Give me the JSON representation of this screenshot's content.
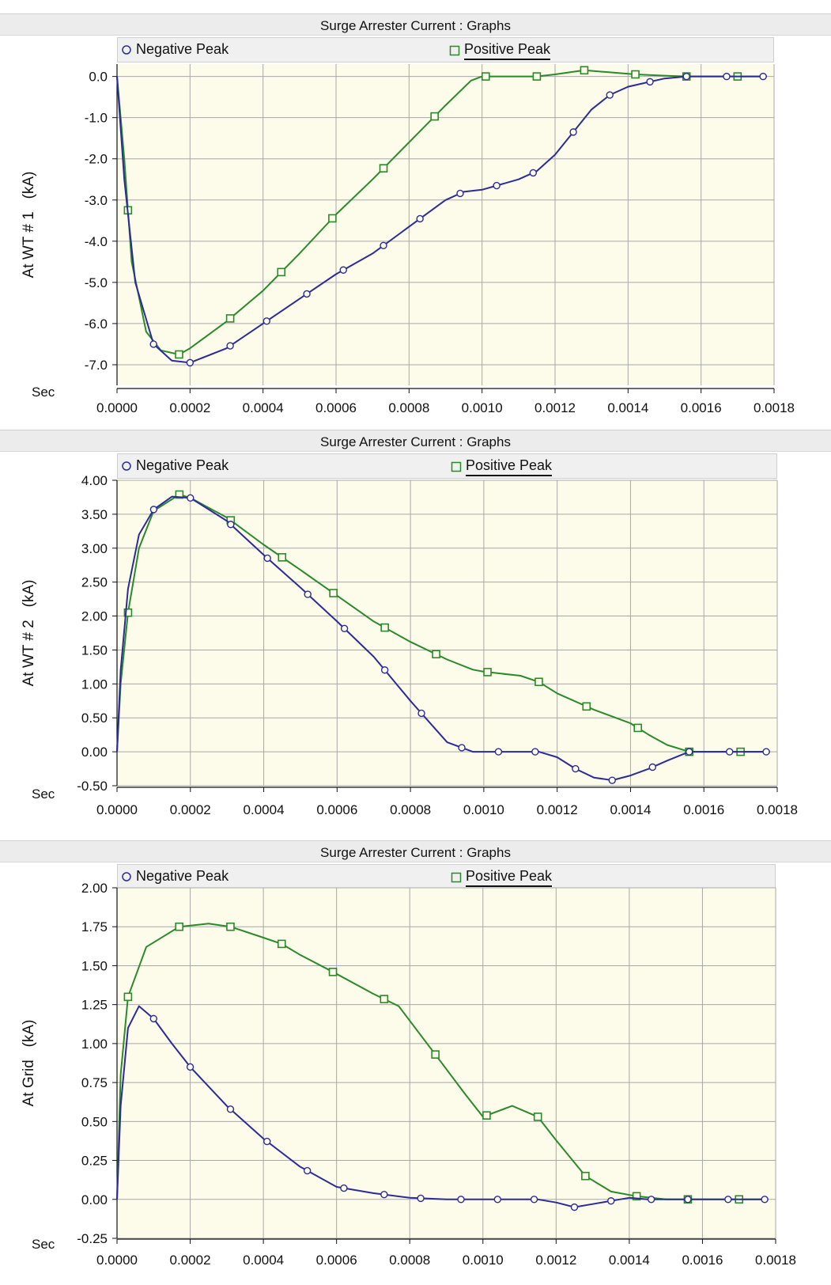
{
  "colors": {
    "negative": "#2b2b99",
    "positive": "#2a8a2a",
    "plot_bg": "#fdfbea",
    "grid": "#a8a8a8",
    "axis": "#111111"
  },
  "icons": {
    "negative_marker": "circle-marker-icon",
    "positive_marker": "square-marker-icon"
  },
  "chart_data": [
    {
      "type": "line",
      "title": "Surge Arrester Current : Graphs",
      "xlabel": "Sec",
      "ylabel": "At WT # 1   (kA)",
      "ylim": [
        -7.5,
        0.3
      ],
      "xlim": [
        0,
        0.0018
      ],
      "grid": true,
      "legend_placement": "top",
      "x_ticks": [
        "0.0000",
        "0.0002",
        "0.0004",
        "0.0006",
        "0.0008",
        "0.0010",
        "0.0012",
        "0.0014",
        "0.0016",
        "0.0018"
      ],
      "y_ticks": [
        "0.0",
        "-1.0",
        "-2.0",
        "-3.0",
        "-4.0",
        "-5.0",
        "-6.0",
        "-7.0"
      ],
      "series": [
        {
          "name": "Negative Peak",
          "marker": "circle",
          "points": [
            [
              0,
              0
            ],
            [
              2e-05,
              -2.5
            ],
            [
              5e-05,
              -5.0
            ],
            [
              0.0001,
              -6.5
            ],
            [
              0.00015,
              -6.9
            ],
            [
              0.0002,
              -6.95
            ],
            [
              0.0003,
              -6.6
            ],
            [
              0.0004,
              -6.0
            ],
            [
              0.0005,
              -5.4
            ],
            [
              0.0006,
              -4.8
            ],
            [
              0.0007,
              -4.3
            ],
            [
              0.0008,
              -3.65
            ],
            [
              0.0009,
              -3.0
            ],
            [
              0.00095,
              -2.8
            ],
            [
              0.001,
              -2.75
            ],
            [
              0.0011,
              -2.5
            ],
            [
              0.00115,
              -2.3
            ],
            [
              0.0012,
              -1.9
            ],
            [
              0.00125,
              -1.35
            ],
            [
              0.0013,
              -0.8
            ],
            [
              0.00135,
              -0.45
            ],
            [
              0.0014,
              -0.25
            ],
            [
              0.00145,
              -0.15
            ],
            [
              0.0015,
              -0.05
            ],
            [
              0.00156,
              0
            ],
            [
              0.0017,
              0
            ],
            [
              0.00178,
              0
            ]
          ],
          "markers_x": [
            0.0001,
            0.0002,
            0.00031,
            0.00041,
            0.00052,
            0.00062,
            0.00073,
            0.00083,
            0.00094,
            0.00104,
            0.00114,
            0.00125,
            0.00135,
            0.00146,
            0.00156,
            0.00167,
            0.00177
          ]
        },
        {
          "name": "Positive Peak",
          "marker": "square",
          "points": [
            [
              0,
              0
            ],
            [
              2e-05,
              -2.0
            ],
            [
              4e-05,
              -4.5
            ],
            [
              8e-05,
              -6.2
            ],
            [
              0.00012,
              -6.65
            ],
            [
              0.00017,
              -6.75
            ],
            [
              0.0002,
              -6.6
            ],
            [
              0.0003,
              -5.95
            ],
            [
              0.0004,
              -5.2
            ],
            [
              0.0005,
              -4.3
            ],
            [
              0.0006,
              -3.35
            ],
            [
              0.0007,
              -2.5
            ],
            [
              0.0008,
              -1.6
            ],
            [
              0.0009,
              -0.7
            ],
            [
              0.00097,
              -0.1
            ],
            [
              0.001,
              0
            ],
            [
              0.00115,
              0
            ],
            [
              0.0012,
              0.05
            ],
            [
              0.00128,
              0.15
            ],
            [
              0.00135,
              0.1
            ],
            [
              0.00142,
              0.05
            ],
            [
              0.0015,
              0.02
            ],
            [
              0.00156,
              0
            ],
            [
              0.0017,
              0
            ],
            [
              0.00178,
              0
            ]
          ],
          "markers_x": [
            3e-05,
            0.00017,
            0.00031,
            0.00045,
            0.00059,
            0.00073,
            0.00087,
            0.00101,
            0.00115,
            0.00128,
            0.00142,
            0.00156,
            0.0017
          ]
        }
      ]
    },
    {
      "type": "line",
      "title": "Surge Arrester Current : Graphs",
      "xlabel": "Sec",
      "ylabel": "At WT # 2   (kA)",
      "ylim": [
        -0.5,
        4.0
      ],
      "xlim": [
        0,
        0.0018
      ],
      "grid": true,
      "legend_placement": "top",
      "x_ticks": [
        "0.0000",
        "0.0002",
        "0.0004",
        "0.0006",
        "0.0008",
        "0.0010",
        "0.0012",
        "0.0014",
        "0.0016",
        "0.0018"
      ],
      "y_ticks": [
        "4.00",
        "3.50",
        "3.00",
        "2.50",
        "2.00",
        "1.50",
        "1.00",
        "0.50",
        "0.00",
        "-0.50"
      ],
      "series": [
        {
          "name": "Negative Peak",
          "marker": "circle",
          "points": [
            [
              0,
              0
            ],
            [
              1e-05,
              1.2
            ],
            [
              3e-05,
              2.4
            ],
            [
              6e-05,
              3.2
            ],
            [
              0.0001,
              3.57
            ],
            [
              0.00015,
              3.76
            ],
            [
              0.0002,
              3.74
            ],
            [
              0.0003,
              3.4
            ],
            [
              0.0004,
              2.9
            ],
            [
              0.0005,
              2.42
            ],
            [
              0.0006,
              1.92
            ],
            [
              0.0007,
              1.4
            ],
            [
              0.0008,
              0.75
            ],
            [
              0.0009,
              0.14
            ],
            [
              0.00097,
              0
            ],
            [
              0.001,
              0
            ],
            [
              0.00115,
              0
            ],
            [
              0.0012,
              -0.08
            ],
            [
              0.00125,
              -0.25
            ],
            [
              0.0013,
              -0.38
            ],
            [
              0.00135,
              -0.42
            ],
            [
              0.0014,
              -0.35
            ],
            [
              0.00145,
              -0.25
            ],
            [
              0.0015,
              -0.13
            ],
            [
              0.00156,
              0
            ],
            [
              0.0017,
              0
            ],
            [
              0.00178,
              0
            ]
          ],
          "markers_x": [
            0.0001,
            0.0002,
            0.00031,
            0.00041,
            0.00052,
            0.00062,
            0.00073,
            0.00083,
            0.00094,
            0.00104,
            0.00114,
            0.00125,
            0.00135,
            0.00146,
            0.00156,
            0.00167,
            0.00177
          ]
        },
        {
          "name": "Positive Peak",
          "marker": "square",
          "points": [
            [
              0,
              0
            ],
            [
              1e-05,
              1.0
            ],
            [
              3e-05,
              2.05
            ],
            [
              6e-05,
              3.0
            ],
            [
              0.0001,
              3.55
            ],
            [
              0.00017,
              3.79
            ],
            [
              0.0002,
              3.74
            ],
            [
              0.0003,
              3.45
            ],
            [
              0.0004,
              3.05
            ],
            [
              0.0005,
              2.68
            ],
            [
              0.0006,
              2.3
            ],
            [
              0.0007,
              1.92
            ],
            [
              0.0008,
              1.62
            ],
            [
              0.0009,
              1.36
            ],
            [
              0.00097,
              1.21
            ],
            [
              0.001,
              1.18
            ],
            [
              0.0011,
              1.12
            ],
            [
              0.00115,
              1.03
            ],
            [
              0.0012,
              0.86
            ],
            [
              0.0013,
              0.62
            ],
            [
              0.0014,
              0.42
            ],
            [
              0.00145,
              0.25
            ],
            [
              0.0015,
              0.1
            ],
            [
              0.00156,
              0
            ],
            [
              0.0017,
              0
            ],
            [
              0.00178,
              0
            ]
          ],
          "markers_x": [
            3e-05,
            0.00017,
            0.00031,
            0.00045,
            0.00059,
            0.00073,
            0.00087,
            0.00101,
            0.00115,
            0.00128,
            0.00142,
            0.00156,
            0.0017
          ]
        }
      ]
    },
    {
      "type": "line",
      "title": "Surge Arrester Current : Graphs",
      "xlabel": "Sec",
      "ylabel": "At Grid   (kA)",
      "ylim": [
        -0.25,
        2.0
      ],
      "xlim": [
        0,
        0.0018
      ],
      "grid": true,
      "legend_placement": "top",
      "x_ticks": [
        "0.0000",
        "0.0002",
        "0.0004",
        "0.0006",
        "0.0008",
        "0.0010",
        "0.0012",
        "0.0014",
        "0.0016",
        "0.0018"
      ],
      "y_ticks": [
        "2.00",
        "1.75",
        "1.50",
        "1.25",
        "1.00",
        "0.75",
        "0.50",
        "0.25",
        "0.00",
        "-0.25"
      ],
      "series": [
        {
          "name": "Negative Peak",
          "marker": "circle",
          "points": [
            [
              0,
              0
            ],
            [
              1e-05,
              0.6
            ],
            [
              3e-05,
              1.1
            ],
            [
              6e-05,
              1.24
            ],
            [
              0.0001,
              1.16
            ],
            [
              0.00015,
              1.0
            ],
            [
              0.0002,
              0.85
            ],
            [
              0.0003,
              0.6
            ],
            [
              0.0004,
              0.39
            ],
            [
              0.0005,
              0.21
            ],
            [
              0.0006,
              0.08
            ],
            [
              0.0007,
              0.04
            ],
            [
              0.0008,
              0.01
            ],
            [
              0.0009,
              0
            ],
            [
              0.00115,
              0
            ],
            [
              0.0012,
              -0.02
            ],
            [
              0.00125,
              -0.05
            ],
            [
              0.0013,
              -0.03
            ],
            [
              0.00135,
              -0.01
            ],
            [
              0.0014,
              0.01
            ],
            [
              0.00145,
              0
            ],
            [
              0.00156,
              0
            ],
            [
              0.0017,
              0
            ],
            [
              0.00178,
              0
            ]
          ],
          "markers_x": [
            0.0001,
            0.0002,
            0.00031,
            0.00041,
            0.00052,
            0.00062,
            0.00073,
            0.00083,
            0.00094,
            0.00104,
            0.00114,
            0.00125,
            0.00135,
            0.00146,
            0.00156,
            0.00167,
            0.00177
          ]
        },
        {
          "name": "Positive Peak",
          "marker": "square",
          "points": [
            [
              0,
              0
            ],
            [
              1e-05,
              0.8
            ],
            [
              3e-05,
              1.3
            ],
            [
              8e-05,
              1.62
            ],
            [
              0.00017,
              1.75
            ],
            [
              0.00025,
              1.77
            ],
            [
              0.00031,
              1.75
            ],
            [
              0.0004,
              1.68
            ],
            [
              0.00045,
              1.64
            ],
            [
              0.0005,
              1.57
            ],
            [
              0.00059,
              1.46
            ],
            [
              0.0007,
              1.32
            ],
            [
              0.00077,
              1.24
            ],
            [
              0.00087,
              0.93
            ],
            [
              0.00095,
              0.68
            ],
            [
              0.001,
              0.53
            ],
            [
              0.00108,
              0.6
            ],
            [
              0.00115,
              0.53
            ],
            [
              0.0012,
              0.38
            ],
            [
              0.00128,
              0.15
            ],
            [
              0.00135,
              0.05
            ],
            [
              0.00142,
              0.02
            ],
            [
              0.0015,
              0
            ],
            [
              0.00156,
              0
            ],
            [
              0.0017,
              0
            ],
            [
              0.00178,
              0
            ]
          ],
          "markers_x": [
            3e-05,
            0.00017,
            0.00031,
            0.00045,
            0.00059,
            0.00073,
            0.00087,
            0.00101,
            0.00115,
            0.00128,
            0.00142,
            0.00156,
            0.0017
          ]
        }
      ]
    }
  ]
}
